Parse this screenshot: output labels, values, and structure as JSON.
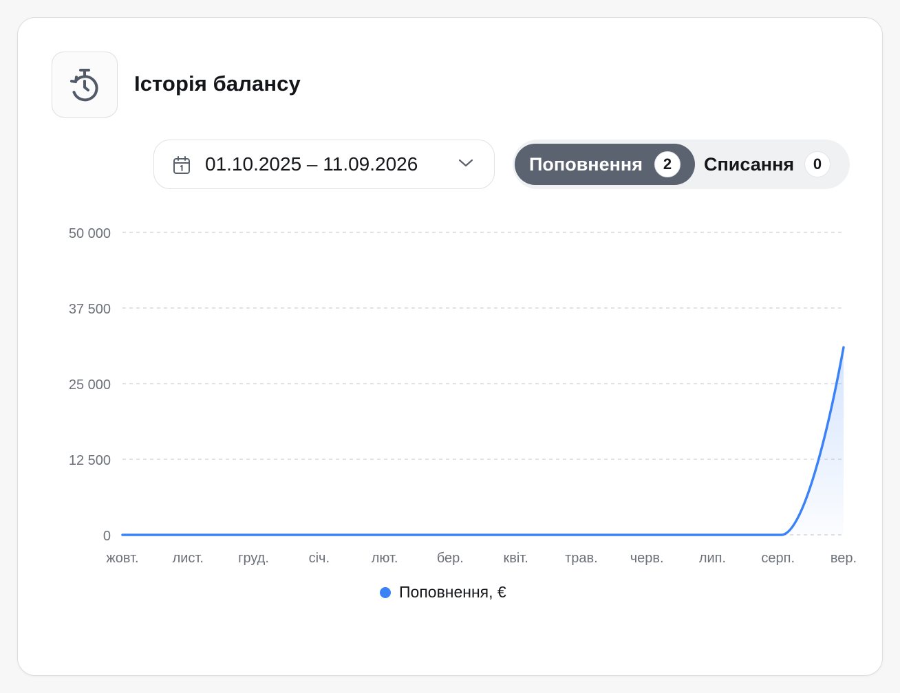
{
  "header": {
    "title": "Історія балансу",
    "icon": "stopwatch-history-icon"
  },
  "filters": {
    "date_range": "01.10.2025 – 11.09.2026",
    "calendar_icon": "calendar-icon",
    "dropdown_icon": "chevron-down-icon"
  },
  "toggle": {
    "items": [
      {
        "label": "Поповнення",
        "count": "2",
        "active": true
      },
      {
        "label": "Списання",
        "count": "0",
        "active": false
      }
    ]
  },
  "chart_data": {
    "type": "area",
    "categories": [
      "жовт.",
      "лист.",
      "груд.",
      "січ.",
      "лют.",
      "бер.",
      "квіт.",
      "трав.",
      "черв.",
      "лип.",
      "серп.",
      "вер."
    ],
    "series": [
      {
        "name": "Поповнення, €",
        "color": "#3b82f6",
        "values": [
          0,
          0,
          0,
          0,
          0,
          0,
          0,
          0,
          0,
          0,
          0,
          31000
        ]
      }
    ],
    "y_ticks": [
      "0",
      "12 500",
      "25 000",
      "37 500",
      "50 000"
    ],
    "y_tick_values": [
      0,
      12500,
      25000,
      37500,
      50000
    ],
    "ylim": [
      0,
      50000
    ],
    "grid": true,
    "legend_position": "bottom-center",
    "xlabel": "",
    "ylabel": ""
  },
  "legend": {
    "label": "Поповнення, €",
    "color": "#3b82f6"
  }
}
